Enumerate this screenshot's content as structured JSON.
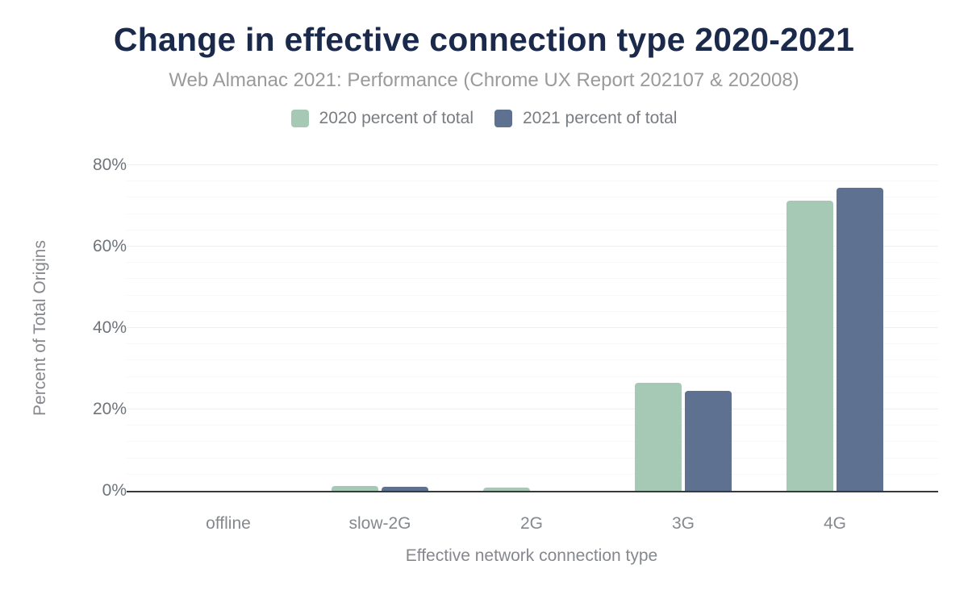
{
  "title": "Change in effective connection type 2020-2021",
  "subtitle": "Web Almanac 2021: Performance (Chrome UX Report 202107 & 202008)",
  "legend": [
    {
      "label": "2020 percent of total",
      "color": "#a6c9b6"
    },
    {
      "label": "2021 percent of total",
      "color": "#5f7190"
    }
  ],
  "chart_data": {
    "type": "bar",
    "title": "Change in effective connection type 2020-2021",
    "subtitle": "Web Almanac 2021: Performance (Chrome UX Report 202107 & 202008)",
    "categories": [
      "offline",
      "slow-2G",
      "2G",
      "3G",
      "4G"
    ],
    "series": [
      {
        "name": "2020 percent of total",
        "color": "#a6c9b6",
        "values": [
          0.0,
          1.2,
          0.7,
          26.5,
          71.3
        ]
      },
      {
        "name": "2021 percent of total",
        "color": "#5f7190",
        "values": [
          0.0,
          0.9,
          0.1,
          24.5,
          74.4
        ]
      }
    ],
    "xlabel": "Effective network connection type",
    "ylabel": "Percent of Total Origins",
    "ylim": [
      0,
      80
    ],
    "ytick_labels": [
      "0%",
      "20%",
      "40%",
      "60%",
      "80%"
    ],
    "y_major_step": 20,
    "y_minor_step": 4,
    "grid": "horizontal-minor-and-major",
    "legend_position": "top"
  }
}
